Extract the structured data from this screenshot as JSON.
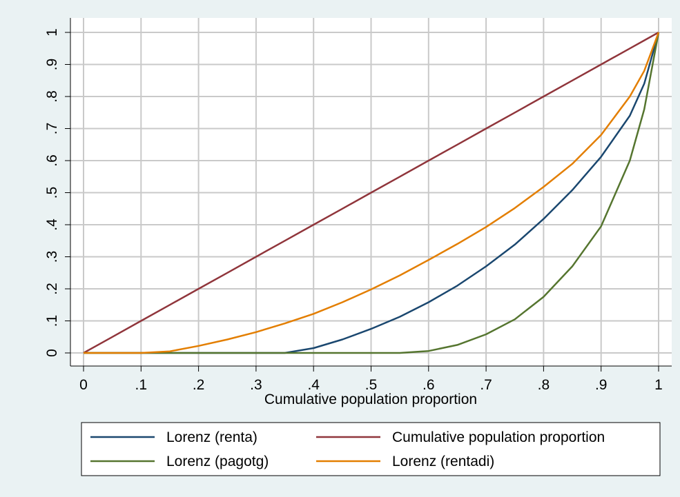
{
  "chart_data": {
    "type": "line",
    "title": "",
    "xlabel": "Cumulative population proportion",
    "ylabel": "",
    "xlim": [
      0,
      1
    ],
    "ylim": [
      0,
      1
    ],
    "grid": true,
    "legend_position": "bottom",
    "x_ticks": [
      "0",
      ".1",
      ".2",
      ".3",
      ".4",
      ".5",
      ".6",
      ".7",
      ".8",
      ".9",
      "1"
    ],
    "y_ticks": [
      "0",
      ".1",
      ".2",
      ".3",
      ".4",
      ".5",
      ".6",
      ".7",
      ".8",
      ".9",
      "1"
    ],
    "x": [
      0,
      0.05,
      0.1,
      0.15,
      0.2,
      0.25,
      0.3,
      0.35,
      0.4,
      0.45,
      0.5,
      0.55,
      0.6,
      0.65,
      0.7,
      0.75,
      0.8,
      0.85,
      0.9,
      0.95,
      0.975,
      1
    ],
    "series": [
      {
        "name": "Lorenz (renta)",
        "color": "#1a476f",
        "values": [
          0,
          0,
          0,
          0,
          0,
          0,
          0,
          0,
          0.015,
          0.042,
          0.075,
          0.113,
          0.158,
          0.21,
          0.27,
          0.338,
          0.418,
          0.508,
          0.612,
          0.74,
          0.84,
          1
        ]
      },
      {
        "name": "Cumulative population proportion",
        "color": "#90353b",
        "values": [
          0,
          0.05,
          0.1,
          0.15,
          0.2,
          0.25,
          0.3,
          0.35,
          0.4,
          0.45,
          0.5,
          0.55,
          0.6,
          0.65,
          0.7,
          0.75,
          0.8,
          0.85,
          0.9,
          0.95,
          0.975,
          1
        ]
      },
      {
        "name": "Lorenz (pagotg)",
        "color": "#55752f",
        "values": [
          0,
          0,
          0,
          0,
          0,
          0,
          0,
          0,
          0,
          0,
          0,
          0,
          0.006,
          0.025,
          0.058,
          0.105,
          0.175,
          0.27,
          0.395,
          0.6,
          0.76,
          1
        ]
      },
      {
        "name": "Lorenz (rentadi)",
        "color": "#e37e00",
        "values": [
          0,
          0,
          0,
          0.005,
          0.022,
          0.042,
          0.065,
          0.092,
          0.122,
          0.158,
          0.198,
          0.242,
          0.29,
          0.34,
          0.393,
          0.452,
          0.518,
          0.59,
          0.68,
          0.8,
          0.88,
          1
        ]
      }
    ]
  }
}
